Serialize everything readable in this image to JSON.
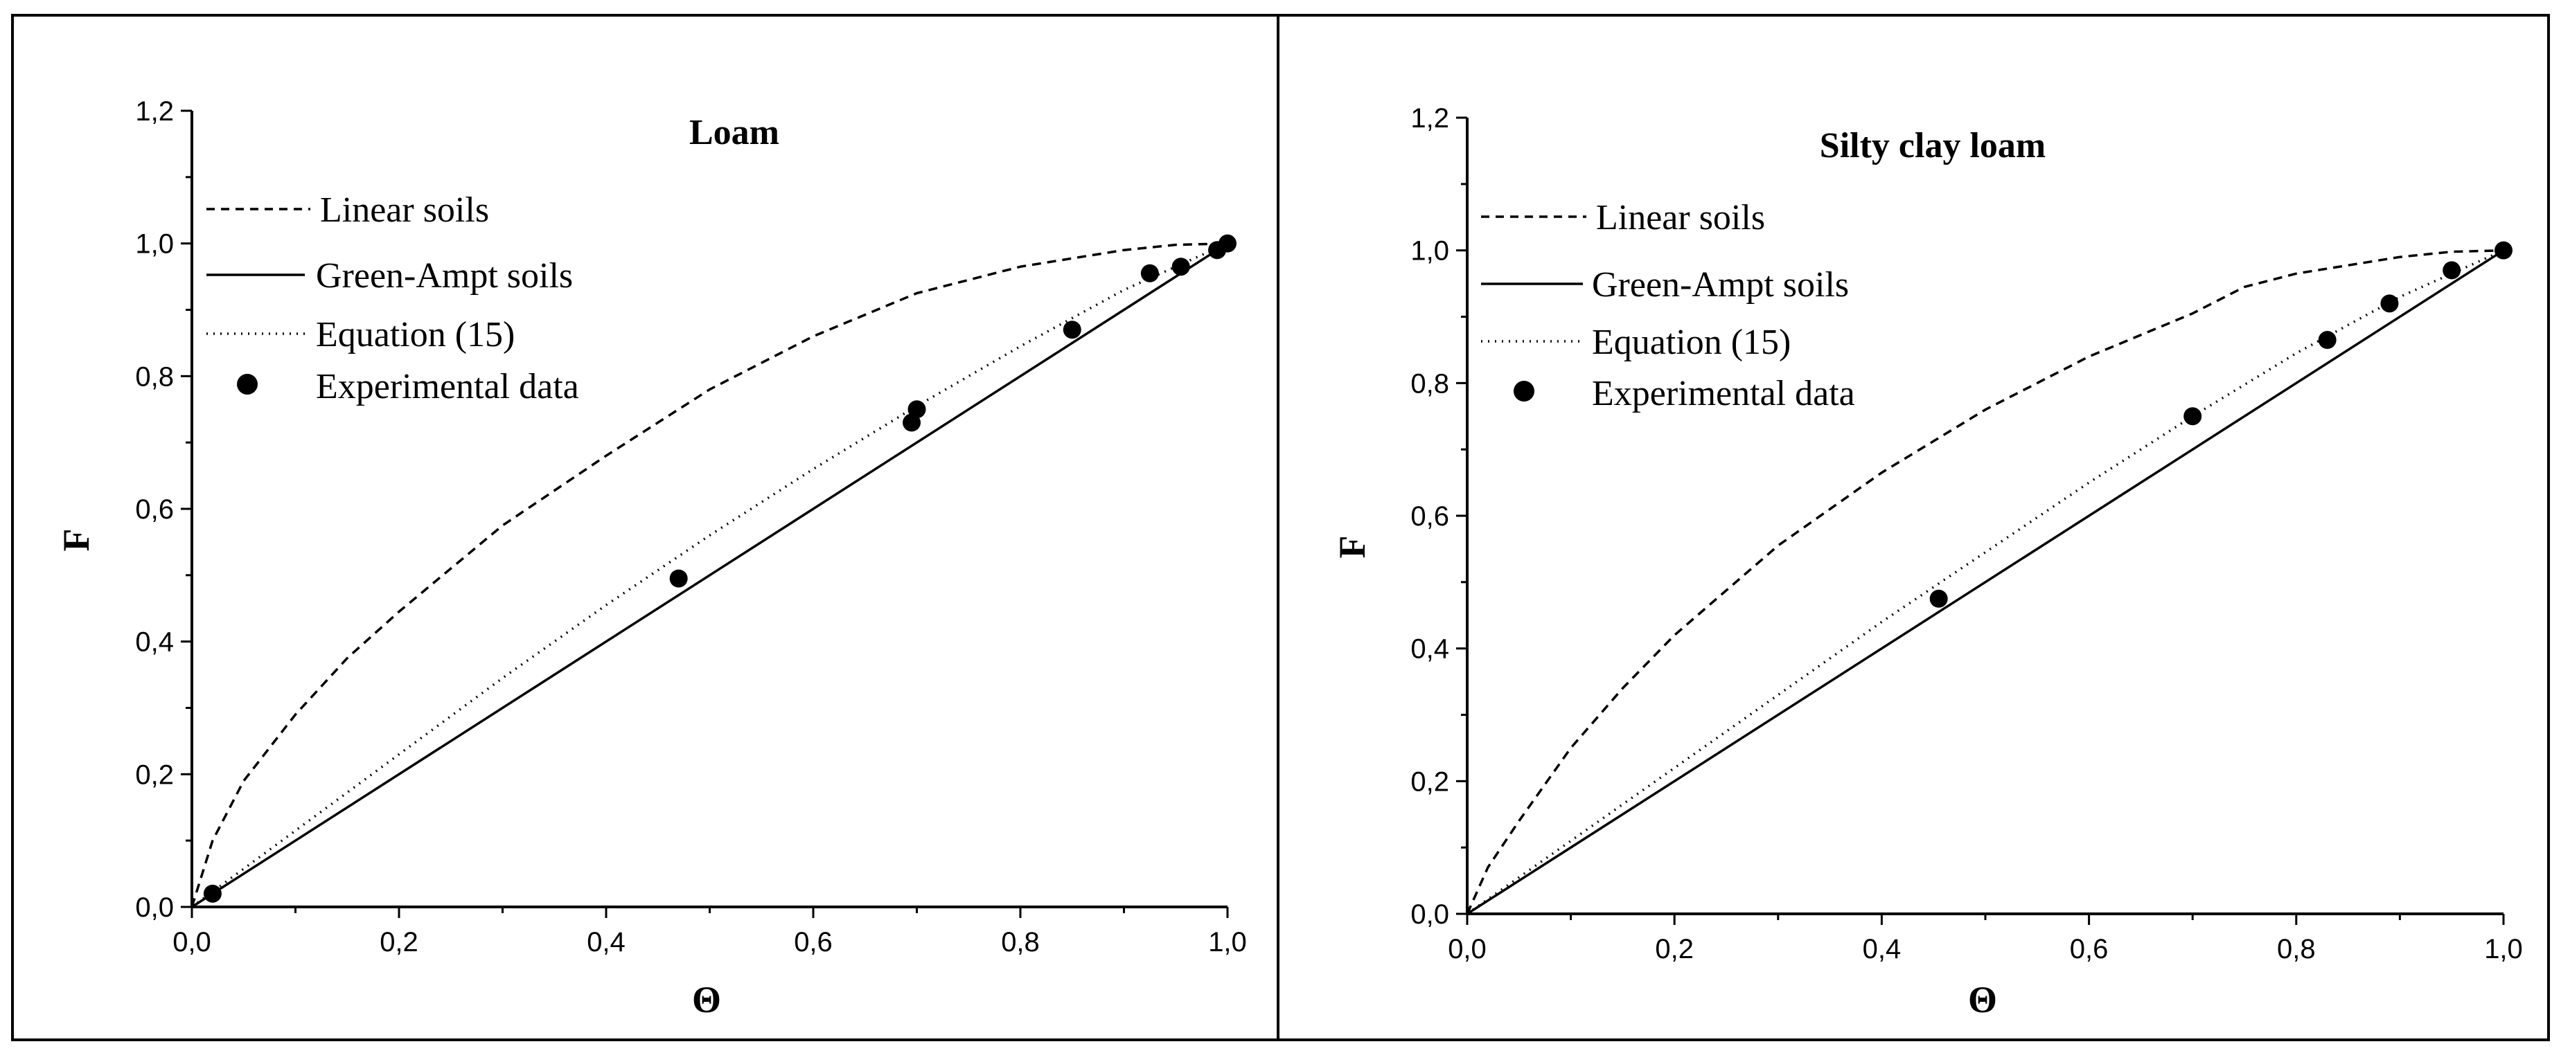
{
  "chart_data": [
    {
      "type": "line",
      "title": "Loam",
      "xlabel": "Θ",
      "ylabel": "F",
      "xlim": [
        0,
        1
      ],
      "ylim": [
        0,
        1.2
      ],
      "x_ticks": [
        "0,0",
        "0,2",
        "0,4",
        "0,6",
        "0,8",
        "1,0"
      ],
      "y_ticks": [
        "0,0",
        "0,2",
        "0,4",
        "0,6",
        "0,8",
        "1,0",
        "1,2"
      ],
      "grid": false,
      "legend_position": "top-left",
      "series": [
        {
          "name": "Linear soils",
          "style": "dashed",
          "x": [
            0,
            0.02,
            0.05,
            0.1,
            0.15,
            0.2,
            0.3,
            0.4,
            0.5,
            0.6,
            0.7,
            0.8,
            0.9,
            0.95,
            1.0
          ],
          "y": [
            0,
            0.1,
            0.19,
            0.29,
            0.375,
            0.445,
            0.575,
            0.68,
            0.78,
            0.86,
            0.925,
            0.965,
            0.99,
            0.998,
            1.0
          ]
        },
        {
          "name": "Green-Ampt soils",
          "style": "solid",
          "x": [
            0,
            1
          ],
          "y": [
            0,
            1
          ]
        },
        {
          "name": "Equation (15)",
          "style": "dotted",
          "x": [
            0,
            0.1,
            0.2,
            0.3,
            0.4,
            0.5,
            0.6,
            0.7,
            0.8,
            0.9,
            1.0
          ],
          "y": [
            0,
            0.115,
            0.23,
            0.345,
            0.455,
            0.56,
            0.66,
            0.755,
            0.845,
            0.93,
            1.0
          ]
        },
        {
          "name": "Experimental data",
          "style": "markers",
          "x": [
            0.02,
            0.47,
            0.695,
            0.7,
            0.85,
            0.925,
            0.955,
            0.99,
            1.0
          ],
          "y": [
            0.02,
            0.495,
            0.73,
            0.75,
            0.87,
            0.955,
            0.965,
            0.99,
            1.0
          ]
        }
      ]
    },
    {
      "type": "line",
      "title": "Silty clay loam",
      "xlabel": "Θ",
      "ylabel": "F",
      "xlim": [
        0,
        1
      ],
      "ylim": [
        0,
        1.2
      ],
      "x_ticks": [
        "0,0",
        "0,2",
        "0,4",
        "0,6",
        "0,8",
        "1,0"
      ],
      "y_ticks": [
        "0,0",
        "0,2",
        "0,4",
        "0,6",
        "0,8",
        "1,0",
        "1,2"
      ],
      "grid": false,
      "legend_position": "top-left",
      "series": [
        {
          "name": "Linear soils",
          "style": "dashed",
          "x": [
            0,
            0.02,
            0.05,
            0.1,
            0.15,
            0.2,
            0.3,
            0.4,
            0.5,
            0.6,
            0.7,
            0.75,
            0.8,
            0.9,
            0.95,
            1.0
          ],
          "y": [
            0,
            0.07,
            0.14,
            0.25,
            0.34,
            0.42,
            0.555,
            0.665,
            0.76,
            0.84,
            0.905,
            0.945,
            0.965,
            0.99,
            0.998,
            1.0
          ]
        },
        {
          "name": "Green-Ampt soils",
          "style": "solid",
          "x": [
            0,
            1
          ],
          "y": [
            0,
            1
          ]
        },
        {
          "name": "Equation (15)",
          "style": "dotted",
          "x": [
            0,
            0.1,
            0.2,
            0.3,
            0.4,
            0.5,
            0.6,
            0.7,
            0.8,
            0.9,
            1.0
          ],
          "y": [
            0,
            0.11,
            0.22,
            0.33,
            0.44,
            0.545,
            0.65,
            0.75,
            0.845,
            0.93,
            1.0
          ]
        },
        {
          "name": "Experimental data",
          "style": "markers",
          "x": [
            0.455,
            0.7,
            0.83,
            0.89,
            0.95,
            1.0
          ],
          "y": [
            0.475,
            0.75,
            0.865,
            0.92,
            0.97,
            1.0
          ]
        }
      ]
    }
  ]
}
